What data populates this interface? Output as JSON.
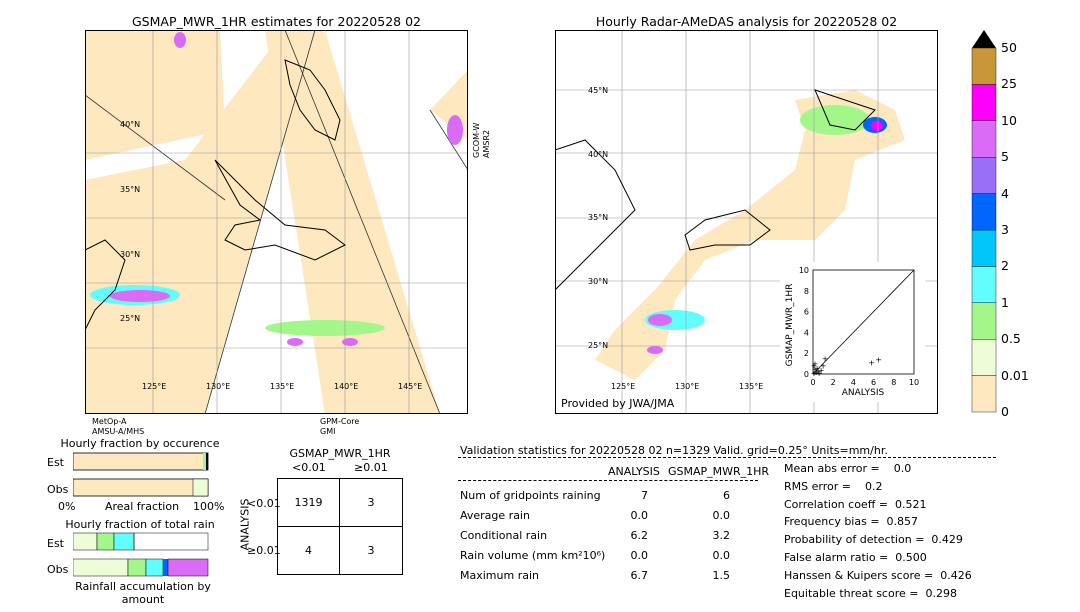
{
  "left_map": {
    "title": "GSMAP_MWR_1HR estimates for 20220528 02",
    "lat_labels": [
      "40°N",
      "35°N",
      "30°N",
      "25°N"
    ],
    "lon_labels": [
      "125°E",
      "130°E",
      "135°E",
      "140°E",
      "145°E"
    ],
    "swath_labels": {
      "bottom_left": "MetOp-A\nAMSU-A/MHS",
      "bottom_center": "GPM-Core\nGMI",
      "right": "GCOM-W\nAMSR2"
    }
  },
  "right_map": {
    "title": "Hourly Radar-AMeDAS analysis for 20220528 02",
    "lat_labels": [
      "45°N",
      "40°N",
      "35°N",
      "30°N",
      "25°N"
    ],
    "lon_labels": [
      "125°E",
      "130°E",
      "135°E"
    ],
    "credit": "Provided by JWA/JMA"
  },
  "colorbar": {
    "labels": [
      "0",
      "0.01",
      "0.5",
      "1",
      "2",
      "3",
      "4",
      "5",
      "10",
      "25",
      "50"
    ],
    "colors": [
      "#fde8bf",
      "#eefcd8",
      "#a3f78a",
      "#62fefe",
      "#00c6fa",
      "#0066fe",
      "#9a6ff8",
      "#d96bf7",
      "#fc00fc",
      "#ca963a"
    ]
  },
  "chart_data": [
    {
      "type": "scatter",
      "title": "",
      "xlabel": "ANALYSIS",
      "ylabel": "GSMAP_MWR_1HR",
      "xlim": [
        0,
        10
      ],
      "ylim": [
        0,
        10
      ],
      "ticks": [
        "0",
        "2",
        "4",
        "6",
        "8",
        "10"
      ],
      "points": [
        [
          0.1,
          0.1
        ],
        [
          0.2,
          0.5
        ],
        [
          0.3,
          0.2
        ],
        [
          0.5,
          0.3
        ],
        [
          0.2,
          1.0
        ],
        [
          0.8,
          0.4
        ],
        [
          1.0,
          0.8
        ],
        [
          1.2,
          1.5
        ],
        [
          0.4,
          0.6
        ],
        [
          5.8,
          1.1
        ],
        [
          6.5,
          1.4
        ],
        [
          0.1,
          0.8
        ],
        [
          0.6,
          0.1
        ]
      ]
    },
    {
      "type": "bar",
      "title": "Hourly fraction by occurence",
      "rows": [
        "Est",
        "Obs"
      ],
      "xlabel": "Areal fraction",
      "x_tick_labels": [
        "0%",
        "100%"
      ]
    },
    {
      "type": "bar",
      "title": "Hourly fraction of total rain",
      "rows": [
        "Est",
        "Obs"
      ],
      "xlabel": "Rainfall accumulation by amount"
    }
  ],
  "contingency": {
    "title": "GSMAP_MWR_1HR",
    "col_headers": [
      "<0.01",
      "≥0.01"
    ],
    "row_headers": [
      "<0.01",
      "≥0.01"
    ],
    "side_label": "ANALYSIS",
    "cells": [
      [
        "1319",
        "3"
      ],
      [
        "4",
        "3"
      ]
    ]
  },
  "stats": {
    "header": "Validation statistics for 20220528 02  n=1329 Valid. grid=0.25° Units=mm/hr.",
    "col_analysis": "ANALYSIS",
    "col_gsmap": "GSMAP_MWR_1HR",
    "rows": [
      {
        "label": "Num of gridpoints raining",
        "a": "7",
        "g": "6"
      },
      {
        "label": "Average rain",
        "a": "0.0",
        "g": "0.0"
      },
      {
        "label": "Conditional rain",
        "a": "6.2",
        "g": "3.2"
      },
      {
        "label": "Rain volume (mm km²10⁶)",
        "a": "0.0",
        "g": "0.0"
      },
      {
        "label": "Maximum rain",
        "a": "6.7",
        "g": "1.5"
      }
    ],
    "scores": [
      "Mean abs error =    0.0",
      "RMS error =    0.2",
      "Correlation coeff =  0.521",
      "Frequency bias =  0.857",
      "Probability of detection =  0.429",
      "False alarm ratio =  0.500",
      "Hanssen & Kuipers score =  0.426",
      "Equitable threat score =  0.298"
    ]
  }
}
